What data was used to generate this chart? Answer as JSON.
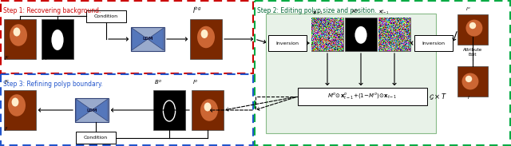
{
  "step1_title": "Step 1: Recovering background.",
  "step2_title": "Step 2: Editing polyp size and position.",
  "step3_title": "Step 3: Refining polyp boundary.",
  "step1_border": "#cc0000",
  "step2_border": "#00aa44",
  "step3_border": "#2255cc",
  "green_bg": "#e8f2e8",
  "ldm_fill": "#99aacc",
  "ldm_tri": "#5577bb",
  "inversion_fill": "#ffffff",
  "formula_fill": "#ffffff",
  "cond_fill": "#ffffff"
}
